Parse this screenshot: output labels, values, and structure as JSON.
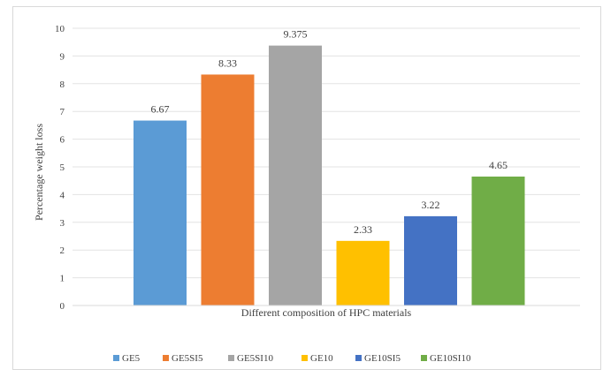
{
  "chart_data": {
    "type": "bar",
    "title": "",
    "xlabel": "Different composition of HPC materials",
    "ylabel": "Percentage weight loss",
    "ylim": [
      0,
      10
    ],
    "yticks": [
      0,
      1,
      2,
      3,
      4,
      5,
      6,
      7,
      8,
      9,
      10
    ],
    "grid": true,
    "legend_position": "bottom",
    "categories": [
      "GE5",
      "GE5SI5",
      "GE5SI10",
      "GE10",
      "GE10SI5",
      "GE10SI10"
    ],
    "values": [
      6.67,
      8.33,
      9.375,
      2.33,
      3.22,
      4.65
    ],
    "value_labels": [
      "6.67",
      "8.33",
      "9.375",
      "2.33",
      "3.22",
      "4.65"
    ],
    "colors": [
      "#5b9bd5",
      "#ed7d31",
      "#a5a5a5",
      "#ffc000",
      "#4472c4",
      "#70ad47"
    ]
  }
}
